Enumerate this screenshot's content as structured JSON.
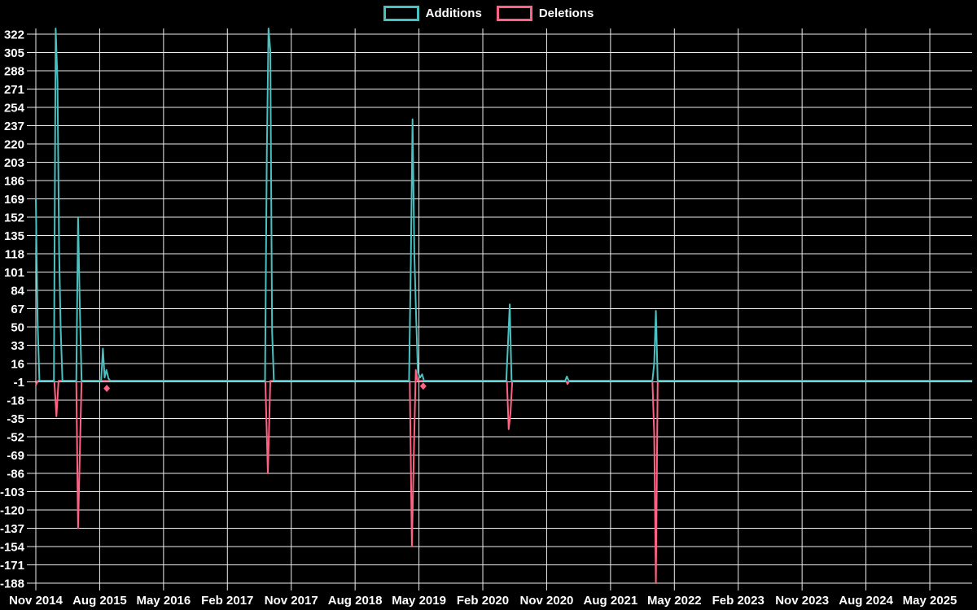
{
  "chart_data": {
    "type": "line",
    "title": "",
    "legend_position": "top",
    "grid": true,
    "background_color": "#000000",
    "grid_color": "#ededed",
    "text_color": "#ffffff",
    "x_axis": {
      "tick_labels": [
        "Nov 2014",
        "Aug 2015",
        "May 2016",
        "Feb 2017",
        "Nov 2017",
        "Aug 2018",
        "May 2019",
        "Feb 2020",
        "Nov 2020",
        "Aug 2021",
        "May 2022",
        "Feb 2023",
        "Nov 2023",
        "Aug 2024",
        "May 2025"
      ],
      "tick_interval_months": 9,
      "origin_label": "Nov 2014",
      "xlim_months": [
        0,
        132
      ]
    },
    "y_axis": {
      "tick_values": [
        322,
        305,
        288,
        271,
        254,
        237,
        220,
        203,
        186,
        169,
        152,
        135,
        118,
        101,
        84,
        67,
        50,
        33,
        16,
        -1,
        -18,
        -35,
        -52,
        -69,
        -86,
        -103,
        -120,
        -137,
        -154,
        -171,
        -188
      ],
      "tick_step": 17,
      "ylim": [
        -188,
        327
      ]
    },
    "series": [
      {
        "name": "Additions",
        "color": "#4bc0c0",
        "points_note": "x = months after Nov 2014, y = lines added; 0 elsewhere; peaks above 327 are clipped by the plot top",
        "points": [
          [
            0,
            169
          ],
          [
            0.25,
            54
          ],
          [
            0.5,
            0
          ],
          [
            2.55,
            0
          ],
          [
            2.8,
            335
          ],
          [
            3.05,
            278
          ],
          [
            3.28,
            121
          ],
          [
            3.5,
            49
          ],
          [
            3.75,
            0
          ],
          [
            5.7,
            0
          ],
          [
            5.95,
            152
          ],
          [
            6.2,
            70
          ],
          [
            6.45,
            0
          ],
          [
            9.2,
            0
          ],
          [
            9.45,
            30
          ],
          [
            9.7,
            3
          ],
          [
            9.95,
            10
          ],
          [
            10.25,
            2
          ],
          [
            10.5,
            0
          ],
          [
            32.3,
            0
          ],
          [
            32.55,
            210
          ],
          [
            32.8,
            335
          ],
          [
            33.05,
            307
          ],
          [
            33.3,
            46
          ],
          [
            33.55,
            0
          ],
          [
            52.6,
            0
          ],
          [
            52.85,
            110
          ],
          [
            53.1,
            243
          ],
          [
            53.35,
            118
          ],
          [
            53.6,
            60
          ],
          [
            53.85,
            8
          ],
          [
            54.15,
            3
          ],
          [
            54.45,
            6
          ],
          [
            54.7,
            0
          ],
          [
            66.3,
            0
          ],
          [
            66.55,
            34
          ],
          [
            66.8,
            71
          ],
          [
            67.05,
            0
          ],
          [
            74.6,
            0
          ],
          [
            74.85,
            4
          ],
          [
            75.1,
            0
          ],
          [
            86.9,
            0
          ],
          [
            87.15,
            16
          ],
          [
            87.4,
            65
          ],
          [
            87.65,
            0
          ],
          [
            131.9,
            0
          ]
        ]
      },
      {
        "name": "Deletions",
        "color": "#ff6384",
        "points_note": "x = months after Nov 2014, y = lines deleted (negative)",
        "points": [
          [
            0,
            -4
          ],
          [
            0.3,
            0
          ],
          [
            2.6,
            0
          ],
          [
            2.9,
            -33
          ],
          [
            3.2,
            0
          ],
          [
            5.7,
            0
          ],
          [
            5.95,
            -137
          ],
          [
            6.2,
            -69
          ],
          [
            6.45,
            0
          ],
          [
            32.35,
            0
          ],
          [
            32.7,
            -86
          ],
          [
            33.05,
            0
          ],
          [
            52.7,
            0
          ],
          [
            53.0,
            -154
          ],
          [
            53.3,
            -60
          ],
          [
            53.55,
            10
          ],
          [
            53.8,
            0
          ],
          [
            66.4,
            0
          ],
          [
            66.65,
            -45
          ],
          [
            66.9,
            -30
          ],
          [
            67.15,
            0
          ],
          [
            74.7,
            0
          ],
          [
            74.95,
            -3
          ],
          [
            75.2,
            0
          ],
          [
            86.9,
            0
          ],
          [
            87.15,
            -49
          ],
          [
            87.4,
            -188
          ],
          [
            87.65,
            0
          ],
          [
            131.9,
            0
          ]
        ],
        "isolated_points": [
          [
            10.0,
            -7
          ],
          [
            54.6,
            -5
          ]
        ]
      }
    ]
  }
}
